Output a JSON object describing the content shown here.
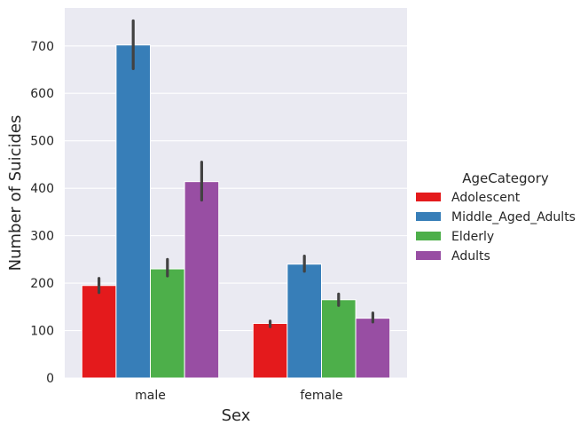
{
  "chart_data": {
    "type": "bar",
    "categories": [
      "male",
      "female"
    ],
    "xlabel": "Sex",
    "ylabel": "Number of Suicides",
    "ylim": [
      0,
      780
    ],
    "yticks": [
      0,
      100,
      200,
      300,
      400,
      500,
      600,
      700
    ],
    "grid": true,
    "legend": {
      "title": "AgeCategory",
      "placement": "right"
    },
    "series": [
      {
        "name": "Adolescent",
        "color": "#e41a1c",
        "values": [
          195,
          115
        ],
        "ci_low": [
          180,
          108
        ],
        "ci_high": [
          210,
          120
        ]
      },
      {
        "name": "Middle_Aged_Adults",
        "color": "#377eb8",
        "values": [
          702,
          240
        ],
        "ci_low": [
          652,
          225
        ],
        "ci_high": [
          753,
          257
        ]
      },
      {
        "name": "Elderly",
        "color": "#4daf4a",
        "values": [
          230,
          165
        ],
        "ci_low": [
          215,
          153
        ],
        "ci_high": [
          250,
          177
        ]
      },
      {
        "name": "Adults",
        "color": "#984ea3",
        "values": [
          414,
          126
        ],
        "ci_low": [
          375,
          118
        ],
        "ci_high": [
          455,
          137
        ]
      }
    ]
  }
}
